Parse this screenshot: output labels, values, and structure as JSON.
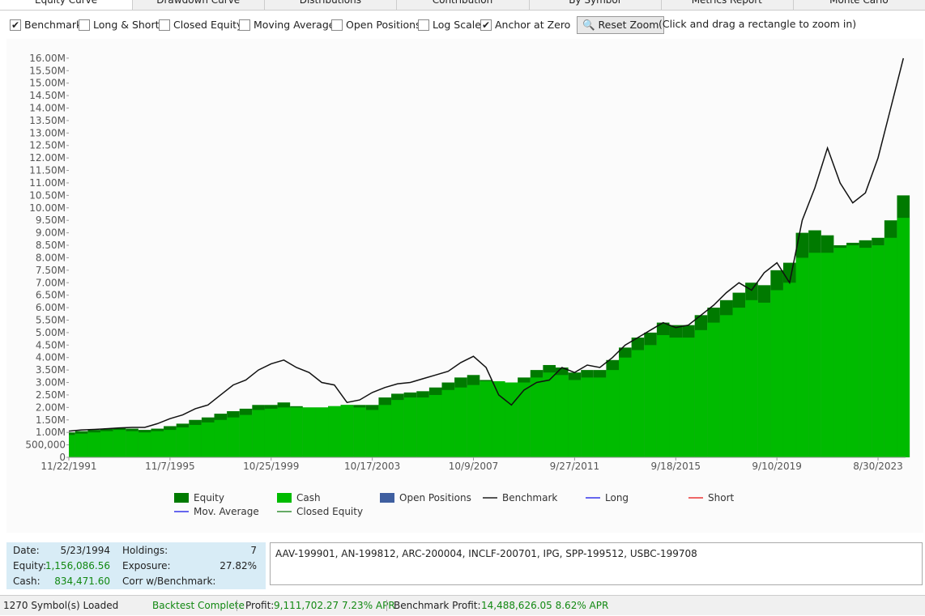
{
  "tabs": [
    "Equity Curve",
    "Drawdown Curve",
    "Distributions",
    "Contribution",
    "By Symbol",
    "Metrics Report",
    "Monte Carlo"
  ],
  "toolbar": {
    "checkboxes": [
      {
        "label": "Benchmark",
        "checked": true
      },
      {
        "label": "Long & Short",
        "checked": false
      },
      {
        "label": "Closed Equity",
        "checked": false
      },
      {
        "label": "Moving Average",
        "checked": false
      },
      {
        "label": "Open Positions",
        "checked": false
      },
      {
        "label": "Log Scale",
        "checked": false
      },
      {
        "label": "Anchor at Zero",
        "checked": true
      }
    ],
    "button": "Reset Zoom",
    "hint": "(Click and drag a rectangle to zoom in)"
  },
  "chart_data": {
    "type": "bar-line",
    "categories": [
      "11/22/1991",
      null,
      null,
      null,
      null,
      null,
      null,
      null,
      "11/7/1995",
      null,
      null,
      null,
      null,
      null,
      null,
      null,
      "10/25/1999",
      null,
      null,
      null,
      null,
      null,
      null,
      null,
      "10/17/2003",
      null,
      null,
      null,
      null,
      null,
      null,
      null,
      "10/9/2007",
      null,
      null,
      null,
      null,
      null,
      null,
      null,
      "9/27/2011",
      null,
      null,
      null,
      null,
      null,
      null,
      null,
      "9/18/2015",
      null,
      null,
      null,
      null,
      null,
      null,
      null,
      "9/10/2019",
      null,
      null,
      null,
      null,
      null,
      null,
      null,
      "8/30/2023",
      null,
      null
    ],
    "series": [
      {
        "name": "Equity",
        "color": "#007a00",
        "kind": "bar",
        "values": [
          1000000,
          1050000,
          1100000,
          1150000,
          1180000,
          1150000,
          1100000,
          1150000,
          1250000,
          1350000,
          1500000,
          1600000,
          1750000,
          1850000,
          1950000,
          2100000,
          2100000,
          2200000,
          2050000,
          2000000,
          2000000,
          2050000,
          2100000,
          2100000,
          2100000,
          2400000,
          2550000,
          2600000,
          2650000,
          2800000,
          3000000,
          3200000,
          3300000,
          3100000,
          3050000,
          3000000,
          3200000,
          3500000,
          3700000,
          3600000,
          3400000,
          3500000,
          3500000,
          3900000,
          4400000,
          4800000,
          5000000,
          5400000,
          5300000,
          5300000,
          5700000,
          6000000,
          6300000,
          6600000,
          7000000,
          6900000,
          7500000,
          7800000,
          9000000,
          9100000,
          8900000,
          8500000,
          8600000,
          8700000,
          8800000,
          9500000,
          10500000
        ]
      },
      {
        "name": "Cash",
        "color": "#00bb00",
        "kind": "bar",
        "values": [
          900000,
          950000,
          1000000,
          1050000,
          1100000,
          1050000,
          1000000,
          1050000,
          1100000,
          1200000,
          1300000,
          1400000,
          1500000,
          1600000,
          1700000,
          1900000,
          1950000,
          2000000,
          2000000,
          2000000,
          2000000,
          2050000,
          2100000,
          2000000,
          1900000,
          2100000,
          2300000,
          2400000,
          2400000,
          2500000,
          2700000,
          2800000,
          2900000,
          3050000,
          3050000,
          3000000,
          3000000,
          3200000,
          3400000,
          3300000,
          3100000,
          3200000,
          3200000,
          3500000,
          4000000,
          4300000,
          4500000,
          4900000,
          4800000,
          4800000,
          5100000,
          5400000,
          5700000,
          6000000,
          6300000,
          6200000,
          6700000,
          7000000,
          8000000,
          8200000,
          8200000,
          8400000,
          8500000,
          8400000,
          8500000,
          8800000,
          9600000
        ]
      },
      {
        "name": "Benchmark",
        "color": "#111111",
        "kind": "line",
        "values": [
          1050000,
          1100000,
          1120000,
          1150000,
          1180000,
          1200000,
          1200000,
          1350000,
          1550000,
          1700000,
          1950000,
          2100000,
          2500000,
          2900000,
          3100000,
          3500000,
          3750000,
          3900000,
          3600000,
          3400000,
          3000000,
          2900000,
          2200000,
          2300000,
          2600000,
          2800000,
          2950000,
          3000000,
          3150000,
          3300000,
          3450000,
          3800000,
          4050000,
          3600000,
          2500000,
          2100000,
          2700000,
          3000000,
          3100000,
          3600000,
          3400000,
          3700000,
          3600000,
          4000000,
          4500000,
          4800000,
          5100000,
          5400000,
          5200000,
          5300000,
          5700000,
          6100000,
          6600000,
          7000000,
          6700000,
          7400000,
          7800000,
          7000000,
          9500000,
          10800000,
          12400000,
          11000000,
          10200000,
          10600000,
          12000000,
          14000000,
          16000000
        ]
      }
    ],
    "legend": [
      {
        "name": "Equity",
        "color": "#007a00",
        "kind": "box"
      },
      {
        "name": "Cash",
        "color": "#00bb00",
        "kind": "box"
      },
      {
        "name": "Open Positions",
        "color": "#3f5fa0",
        "kind": "box"
      },
      {
        "name": "Benchmark",
        "color": "#555555",
        "kind": "line"
      },
      {
        "name": "Long",
        "color": "#6666ee",
        "kind": "line"
      },
      {
        "name": "Short",
        "color": "#ee6666",
        "kind": "line"
      },
      {
        "name": "Mov. Average",
        "color": "#6666ee",
        "kind": "line"
      },
      {
        "name": "Closed Equity",
        "color": "#66aa66",
        "kind": "line"
      }
    ],
    "ylim": [
      0,
      16800000
    ],
    "yticks": [
      0,
      {
        "value": 500000,
        "label": "500,000"
      },
      {
        "value": 1000000,
        "label": "1.00M"
      },
      {
        "value": 1500000,
        "label": "1.50M"
      },
      {
        "value": 2000000,
        "label": "2.00M"
      },
      {
        "value": 2500000,
        "label": "2.50M"
      },
      {
        "value": 3000000,
        "label": "3.00M"
      },
      {
        "value": 3500000,
        "label": "3.50M"
      },
      {
        "value": 4000000,
        "label": "4.00M"
      },
      {
        "value": 4500000,
        "label": "4.50M"
      },
      {
        "value": 5000000,
        "label": "5.00M"
      },
      {
        "value": 5500000,
        "label": "5.50M"
      },
      {
        "value": 6000000,
        "label": "6.00M"
      },
      {
        "value": 6500000,
        "label": "6.50M"
      },
      {
        "value": 7000000,
        "label": "7.00M"
      },
      {
        "value": 7500000,
        "label": "7.50M"
      },
      {
        "value": 8000000,
        "label": "8.00M"
      },
      {
        "value": 8500000,
        "label": "8.50M"
      },
      {
        "value": 9000000,
        "label": "9.00M"
      },
      {
        "value": 9500000,
        "label": "9.50M"
      },
      {
        "value": 10000000,
        "label": "10.00M"
      },
      {
        "value": 10500000,
        "label": "10.50M"
      },
      {
        "value": 11000000,
        "label": "11.00M"
      },
      {
        "value": 11500000,
        "label": "11.50M"
      },
      {
        "value": 12000000,
        "label": "12.00M"
      },
      {
        "value": 12500000,
        "label": "12.50M"
      },
      {
        "value": 13000000,
        "label": "13.00M"
      },
      {
        "value": 13500000,
        "label": "13.50M"
      },
      {
        "value": 14000000,
        "label": "14.00M"
      },
      {
        "value": 14500000,
        "label": "14.50M"
      },
      {
        "value": 15000000,
        "label": "15.00M"
      },
      {
        "value": 15500000,
        "label": "15.50M"
      },
      {
        "value": 16000000,
        "label": "16.00M"
      }
    ]
  },
  "info": {
    "date_label": "Date:",
    "date": "5/23/1994",
    "equity_label": "Equity:",
    "equity": "1,156,086.56",
    "cash_label": "Cash:",
    "cash": "834,471.60",
    "holdings_label": "Holdings:",
    "holdings": "7",
    "exposure_label": "Exposure:",
    "exposure": "27.82%",
    "corr_label": "Corr w/Benchmark:"
  },
  "symbols": "AAV-199901, AN-199812, ARC-200004, INCLF-200701, IPG, SPP-199512, USBC-199708",
  "status": {
    "loaded": "1270 Symbol(s) Loaded",
    "state": "Backtest Complete",
    "profit_label": "Profit:",
    "profit": "9,111,702.27 7.23% APR",
    "bench_label": "Benchmark Profit:",
    "bench": "14,488,626.05 8.62% APR"
  }
}
